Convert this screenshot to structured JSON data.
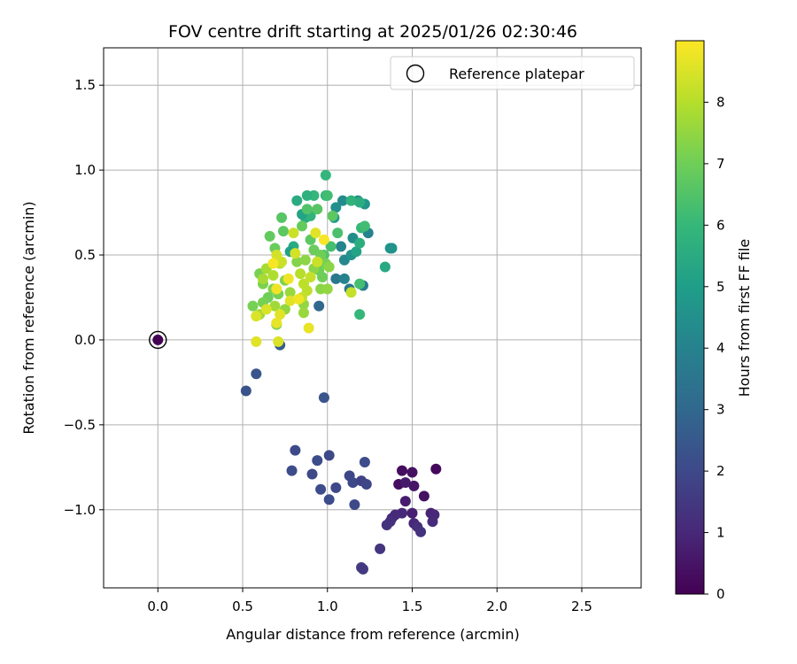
{
  "chart_data": {
    "type": "scatter",
    "title": "FOV centre drift starting at 2025/01/26 02:30:46",
    "xlabel": "Angular distance from reference (arcmin)",
    "ylabel": "Rotation from reference (arcmin)",
    "xlim": [
      -0.32,
      2.85
    ],
    "ylim": [
      -1.46,
      1.72
    ],
    "xticks": [
      0.0,
      0.5,
      1.0,
      1.5,
      2.0,
      2.5
    ],
    "xtick_labels": [
      "0.0",
      "0.5",
      "1.0",
      "1.5",
      "2.0",
      "2.5"
    ],
    "yticks": [
      -1.0,
      -0.5,
      0.0,
      0.5,
      1.0,
      1.5
    ],
    "ytick_labels": [
      "−1.0",
      "−0.5",
      "0.0",
      "0.5",
      "1.0",
      "1.5"
    ],
    "grid": true,
    "legend": {
      "placement": "top-right",
      "entries": [
        "Reference platepar"
      ]
    },
    "reference_point": {
      "x": 0.0,
      "y": 0.0
    },
    "colorbar": {
      "label": "Hours from first FF file",
      "range": [
        0,
        9
      ],
      "ticks": [
        0,
        1,
        2,
        3,
        4,
        5,
        6,
        7,
        8
      ],
      "tick_labels": [
        "0",
        "1",
        "2",
        "3",
        "4",
        "5",
        "6",
        "7",
        "8"
      ],
      "colormap": "viridis"
    },
    "points": [
      [
        0.0,
        0.0,
        0.0
      ],
      [
        1.64,
        -0.76,
        0.2
      ],
      [
        1.44,
        -0.77,
        0.3
      ],
      [
        1.5,
        -0.78,
        0.4
      ],
      [
        1.42,
        -0.85,
        0.3
      ],
      [
        1.51,
        -0.86,
        0.5
      ],
      [
        1.46,
        -0.84,
        0.6
      ],
      [
        1.57,
        -0.92,
        0.4
      ],
      [
        1.46,
        -0.95,
        0.7
      ],
      [
        1.61,
        -1.02,
        0.9
      ],
      [
        1.63,
        -1.03,
        1.0
      ],
      [
        1.5,
        -1.02,
        0.8
      ],
      [
        1.44,
        -1.02,
        1.0
      ],
      [
        1.4,
        -1.03,
        1.1
      ],
      [
        1.38,
        -1.05,
        1.1
      ],
      [
        1.37,
        -1.07,
        1.2
      ],
      [
        1.51,
        -1.08,
        1.0
      ],
      [
        1.62,
        -1.07,
        1.1
      ],
      [
        1.53,
        -1.1,
        1.2
      ],
      [
        1.55,
        -1.13,
        1.3
      ],
      [
        1.35,
        -1.09,
        1.3
      ],
      [
        1.31,
        -1.23,
        1.4
      ],
      [
        1.2,
        -1.34,
        1.6
      ],
      [
        1.21,
        -1.35,
        1.5
      ],
      [
        1.22,
        -0.72,
        2.1
      ],
      [
        1.01,
        -0.68,
        2.0
      ],
      [
        0.94,
        -0.71,
        2.1
      ],
      [
        0.81,
        -0.65,
        2.0
      ],
      [
        0.79,
        -0.77,
        2.1
      ],
      [
        0.91,
        -0.79,
        2.0
      ],
      [
        1.13,
        -0.8,
        1.9
      ],
      [
        1.15,
        -0.84,
        2.0
      ],
      [
        1.2,
        -0.83,
        1.8
      ],
      [
        1.23,
        -0.85,
        1.9
      ],
      [
        0.96,
        -0.88,
        2.1
      ],
      [
        1.05,
        -0.87,
        2.0
      ],
      [
        1.01,
        -0.94,
        2.1
      ],
      [
        1.16,
        -0.97,
        2.0
      ],
      [
        0.98,
        -0.34,
        2.4
      ],
      [
        0.52,
        -0.3,
        2.3
      ],
      [
        0.58,
        -0.2,
        2.4
      ],
      [
        0.72,
        -0.03,
        2.6
      ],
      [
        0.95,
        0.2,
        3.0
      ],
      [
        1.13,
        0.3,
        3.6
      ],
      [
        1.05,
        0.36,
        3.6
      ],
      [
        1.21,
        0.32,
        3.8
      ],
      [
        1.1,
        0.36,
        4.0
      ],
      [
        1.1,
        0.47,
        4.2
      ],
      [
        1.14,
        0.5,
        4.6
      ],
      [
        1.08,
        0.55,
        4.1
      ],
      [
        1.15,
        0.6,
        4.4
      ],
      [
        1.24,
        0.63,
        4.0
      ],
      [
        1.22,
        0.8,
        4.7
      ],
      [
        1.18,
        0.82,
        4.4
      ],
      [
        1.09,
        0.82,
        4.3
      ],
      [
        1.05,
        0.78,
        4.5
      ],
      [
        1.04,
        0.72,
        4.9
      ],
      [
        1.37,
        0.54,
        4.7
      ],
      [
        1.38,
        0.54,
        4.6
      ],
      [
        1.34,
        0.43,
        5.4
      ],
      [
        1.17,
        0.52,
        5.2
      ],
      [
        1.19,
        0.57,
        5.6
      ],
      [
        0.87,
        0.72,
        5.6
      ],
      [
        0.9,
        0.73,
        5.8
      ],
      [
        0.85,
        0.74,
        5.2
      ],
      [
        0.8,
        0.55,
        5.5
      ],
      [
        0.78,
        0.52,
        5.1
      ],
      [
        0.99,
        0.97,
        5.9
      ],
      [
        0.99,
        0.85,
        5.9
      ],
      [
        1.0,
        0.85,
        6.2
      ],
      [
        0.92,
        0.85,
        5.9
      ],
      [
        0.88,
        0.85,
        5.7
      ],
      [
        1.14,
        0.82,
        5.8
      ],
      [
        1.19,
        0.81,
        5.6
      ],
      [
        0.82,
        0.82,
        5.5
      ],
      [
        1.2,
        0.66,
        6.0
      ],
      [
        1.22,
        0.67,
        6.2
      ],
      [
        1.19,
        0.15,
        6.0
      ],
      [
        1.19,
        0.33,
        6.3
      ],
      [
        1.06,
        0.63,
        6.4
      ],
      [
        1.02,
        0.55,
        6.3
      ],
      [
        0.98,
        0.5,
        6.5
      ],
      [
        0.88,
        0.77,
        6.5
      ],
      [
        0.94,
        0.77,
        6.6
      ],
      [
        1.03,
        0.73,
        6.7
      ],
      [
        0.73,
        0.72,
        6.6
      ],
      [
        0.74,
        0.64,
        6.7
      ],
      [
        0.66,
        0.61,
        6.8
      ],
      [
        0.69,
        0.54,
        6.9
      ],
      [
        0.85,
        0.67,
        6.8
      ],
      [
        0.9,
        0.59,
        6.7
      ],
      [
        0.92,
        0.53,
        6.9
      ],
      [
        0.96,
        0.5,
        7.0
      ],
      [
        0.95,
        0.41,
        7.0
      ],
      [
        0.99,
        0.45,
        7.1
      ],
      [
        0.97,
        0.37,
        7.0
      ],
      [
        0.6,
        0.39,
        7.1
      ],
      [
        0.62,
        0.33,
        7.2
      ],
      [
        0.68,
        0.3,
        7.2
      ],
      [
        0.71,
        0.27,
        7.1
      ],
      [
        0.65,
        0.25,
        7.0
      ],
      [
        0.7,
        0.09,
        7.2
      ],
      [
        0.56,
        0.2,
        7.1
      ],
      [
        0.62,
        0.22,
        7.1
      ],
      [
        0.75,
        0.35,
        7.3
      ],
      [
        0.82,
        0.46,
        7.3
      ],
      [
        0.87,
        0.47,
        7.4
      ],
      [
        0.92,
        0.42,
        7.4
      ],
      [
        0.96,
        0.3,
        7.4
      ],
      [
        1.01,
        0.43,
        7.4
      ],
      [
        1.0,
        0.3,
        7.5
      ],
      [
        0.86,
        0.21,
        7.5
      ],
      [
        0.86,
        0.16,
        7.6
      ],
      [
        0.75,
        0.18,
        7.5
      ],
      [
        0.78,
        0.28,
        7.6
      ],
      [
        0.69,
        0.2,
        7.7
      ],
      [
        0.6,
        0.15,
        7.7
      ],
      [
        0.62,
        0.36,
        7.8
      ],
      [
        0.64,
        0.42,
        7.8
      ],
      [
        0.68,
        0.38,
        7.9
      ],
      [
        0.72,
        0.45,
        8.0
      ],
      [
        0.84,
        0.39,
        8.0
      ],
      [
        0.86,
        0.33,
        8.1
      ],
      [
        0.88,
        0.29,
        8.1
      ],
      [
        0.9,
        0.37,
        8.2
      ],
      [
        0.85,
        0.25,
        8.2
      ],
      [
        0.94,
        0.46,
        8.3
      ],
      [
        0.73,
        0.46,
        8.3
      ],
      [
        0.7,
        0.5,
        8.4
      ],
      [
        0.8,
        0.63,
        8.3
      ],
      [
        0.81,
        0.51,
        8.4
      ],
      [
        1.14,
        0.28,
        8.2
      ],
      [
        0.58,
        0.14,
        8.5
      ],
      [
        0.64,
        0.18,
        8.5
      ],
      [
        0.72,
        0.15,
        8.6
      ],
      [
        0.7,
        0.1,
        8.7
      ],
      [
        0.58,
        -0.01,
        8.6
      ],
      [
        0.71,
        -0.01,
        8.5
      ],
      [
        0.89,
        0.07,
        8.7
      ],
      [
        0.78,
        0.23,
        8.6
      ],
      [
        0.83,
        0.24,
        8.8
      ],
      [
        0.93,
        0.63,
        8.6
      ],
      [
        0.98,
        0.59,
        8.9
      ],
      [
        0.7,
        0.3,
        8.8
      ],
      [
        0.77,
        0.36,
        8.8
      ],
      [
        0.68,
        0.45,
        8.9
      ]
    ]
  }
}
